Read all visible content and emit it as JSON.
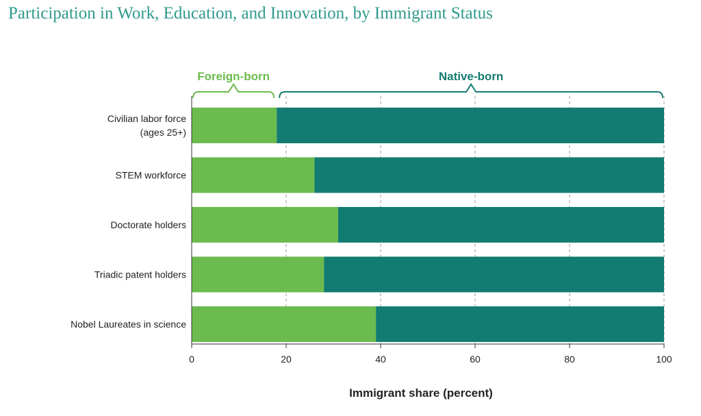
{
  "title": "Participation in Work, Education, and Innovation, by Immigrant Status",
  "chart_data": {
    "type": "bar",
    "orientation": "horizontal",
    "stacked": true,
    "categories": [
      [
        "Civilian labor force",
        "(ages 25+)"
      ],
      [
        "STEM workforce"
      ],
      [
        "Doctorate holders"
      ],
      [
        "Triadic patent holders"
      ],
      [
        "Nobel Laureates in science"
      ]
    ],
    "series": [
      {
        "name": "Foreign-born",
        "color": "#6cbb4e",
        "values": [
          18,
          26,
          31,
          28,
          39
        ]
      },
      {
        "name": "Native-born",
        "color": "#137c72",
        "values": [
          82,
          74,
          69,
          72,
          61
        ]
      }
    ],
    "xlabel": "Immigrant share (percent)",
    "ylabel": "",
    "xlim": [
      0,
      100
    ],
    "xticks": [
      0,
      20,
      40,
      60,
      80,
      100
    ],
    "grid": "vertical dashed",
    "legend": "top, bracketed over bars"
  }
}
